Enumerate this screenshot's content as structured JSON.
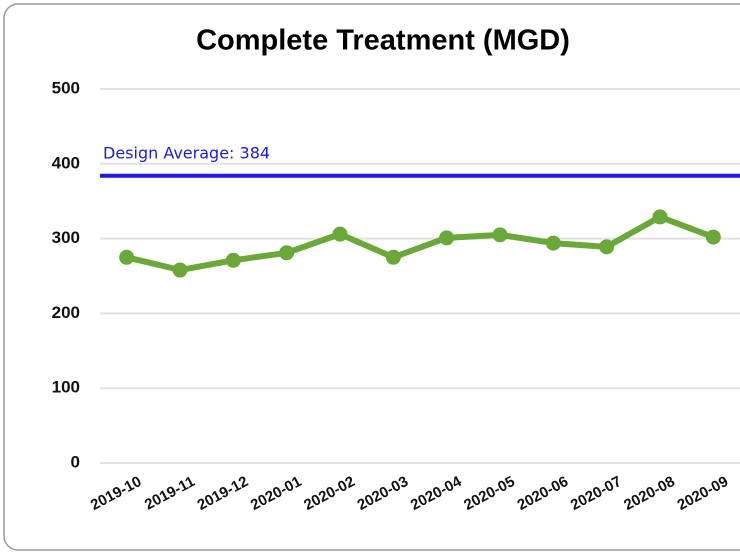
{
  "chart_data": {
    "type": "line",
    "title": "Complete Treatment (MGD)",
    "categories": [
      "2019-10",
      "2019-11",
      "2019-12",
      "2020-01",
      "2020-02",
      "2020-03",
      "2020-04",
      "2020-05",
      "2020-06",
      "2020-07",
      "2020-08",
      "2020-09"
    ],
    "series": [
      {
        "name": "Complete Treatment",
        "color": "#6aa83a",
        "values": [
          275,
          258,
          271,
          281,
          306,
          275,
          301,
          305,
          294,
          289,
          329,
          302
        ]
      }
    ],
    "reference_lines": [
      {
        "value": 384,
        "label": "Design Average: 384",
        "color": "#1c1ce0"
      }
    ],
    "ylim": [
      0,
      500
    ],
    "yticks": [
      0,
      100,
      200,
      300,
      400,
      500
    ],
    "grid": true
  }
}
